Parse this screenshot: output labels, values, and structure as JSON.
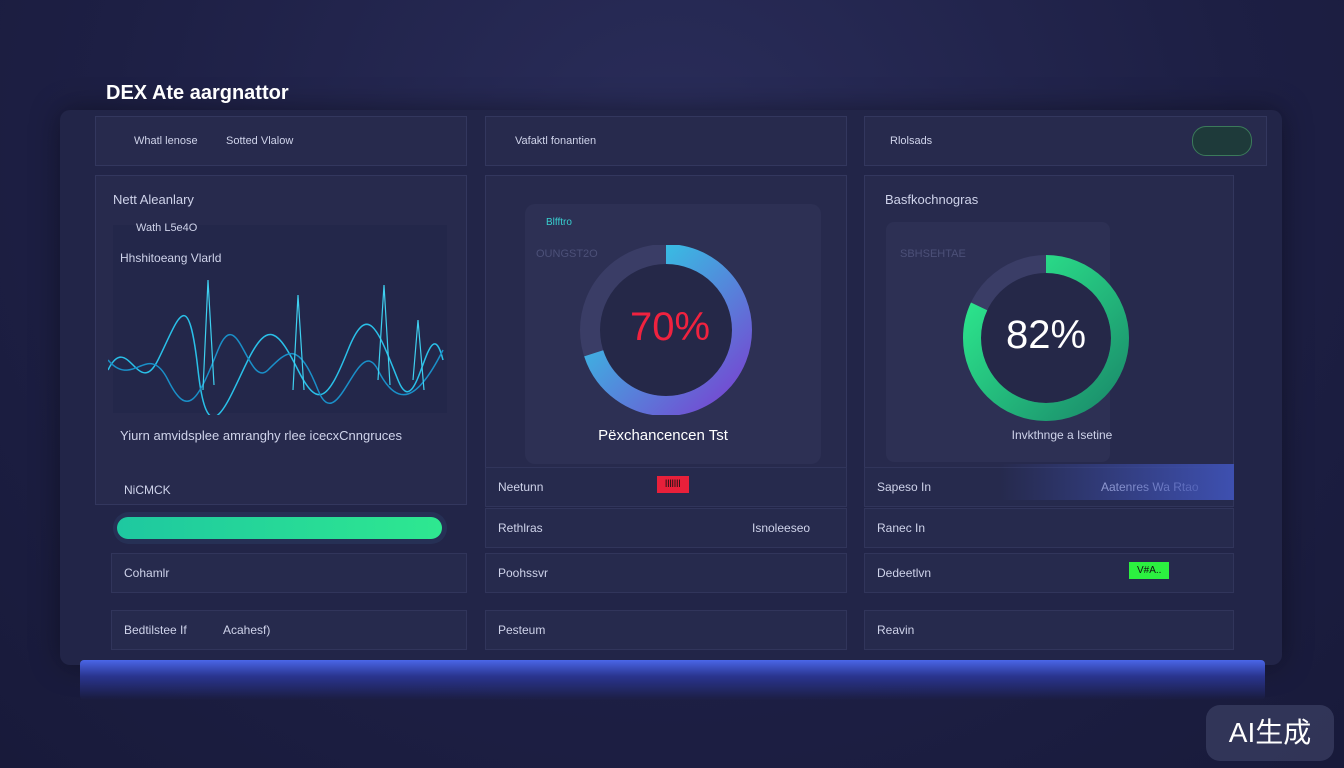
{
  "header": {
    "title": "DEX Ate aargnattor"
  },
  "tabs": [
    {
      "label": "Whatl lenose",
      "sublabel": "Sotted Vlalow"
    },
    {
      "label": "Vafaktl fonantien"
    },
    {
      "label": "Rlolsads"
    }
  ],
  "panels": [
    {
      "title": "Nett Aleanlary",
      "lines": [
        "Wath L5e4O",
        "Hhshitoeang  Vlarld"
      ],
      "caption": "Yiurn amvidsplee amranghy rlee icecxCnngruces"
    },
    {
      "title": "Blfftro",
      "subtitle": "OUNGST2O",
      "gauge": {
        "value": 70,
        "label": "70%"
      },
      "caption": "Pëxchancencen Tst"
    },
    {
      "title": "Basfkochnogras",
      "subtitle": "SBHSEHTAE",
      "gauge": {
        "value": 82,
        "label": "82%"
      },
      "caption": "Invkthnge a Isetine"
    }
  ],
  "rows": [
    [
      {
        "label": "NiCMCK"
      },
      {
        "label": "Cohamlr"
      },
      {
        "label": "Bedtilstee If",
        "extra": "Acahesf)"
      }
    ],
    [
      {
        "label": "Neetunn",
        "chip": "lllllll"
      },
      {
        "label": "Rethlras",
        "extra": "Isnoleeseo"
      },
      {
        "label": "Poohssvr"
      },
      {
        "label": "Pesteum"
      }
    ],
    [
      {
        "label": "Sapeso In",
        "extra": "Aatenres Wa Rtao"
      },
      {
        "label": "Ranec In"
      },
      {
        "label": "Dedeetlvn",
        "chip": "V#A.."
      },
      {
        "label": "Reavin"
      }
    ]
  ],
  "watermark": "AI生成"
}
